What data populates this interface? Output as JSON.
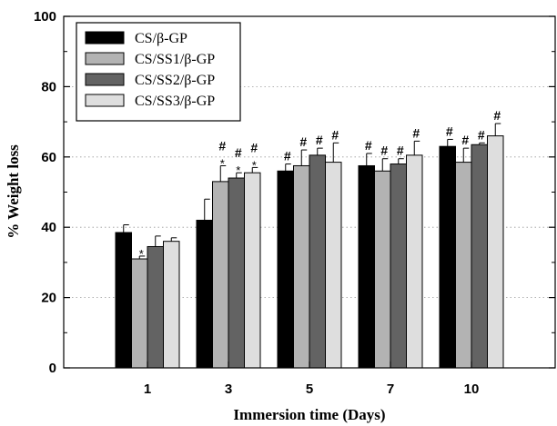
{
  "chart_data": {
    "type": "bar",
    "xlabel": "Immersion time (Days)",
    "ylabel": "% Weight loss",
    "ylim": [
      0,
      100
    ],
    "yticks": [
      0,
      20,
      40,
      60,
      80,
      100
    ],
    "grid": "horizontal dotted",
    "legend_position": "top-left",
    "categories": [
      "1",
      "3",
      "5",
      "7",
      "10"
    ],
    "series": [
      {
        "name": "CS/β-GP",
        "color": "#000000",
        "values": [
          38.5,
          42.0,
          56.0,
          57.5,
          63.0
        ],
        "errors": [
          2.2,
          6.0,
          2.0,
          3.5,
          2.0
        ],
        "annotations": [
          "",
          "",
          "#",
          "#",
          "#"
        ]
      },
      {
        "name": "CS/SS1/β-GP",
        "color": "#b3b3b3",
        "values": [
          31.0,
          53.0,
          57.5,
          56.0,
          58.5
        ],
        "errors": [
          0.8,
          4.5,
          4.5,
          3.5,
          4.0
        ],
        "annotations": [
          "*",
          "#\n*",
          "#",
          "#",
          "#"
        ]
      },
      {
        "name": "CS/SS2/β-GP",
        "color": "#636363",
        "values": [
          34.5,
          54.0,
          60.5,
          58.0,
          63.5
        ],
        "errors": [
          3.0,
          1.5,
          2.0,
          1.5,
          0.5
        ],
        "annotations": [
          "",
          "#\n*",
          "#",
          "#",
          "#"
        ]
      },
      {
        "name": "CS/SS3/β-GP",
        "color": "#dedede",
        "values": [
          36.0,
          55.5,
          58.5,
          60.5,
          66.0
        ],
        "errors": [
          1.0,
          1.5,
          5.5,
          4.0,
          3.5
        ],
        "annotations": [
          "",
          "#\n*",
          "#",
          "#",
          "#"
        ]
      }
    ]
  }
}
